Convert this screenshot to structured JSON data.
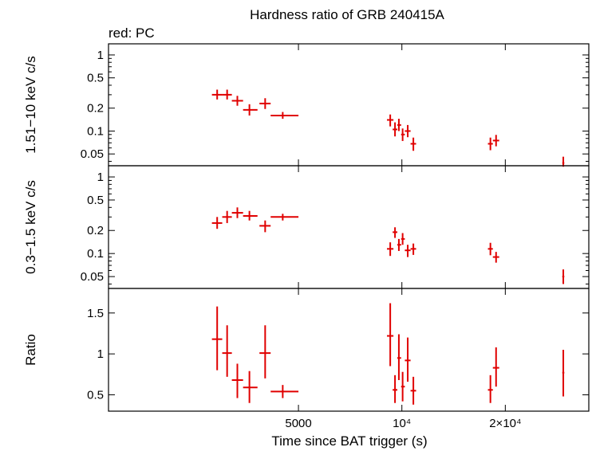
{
  "chart_data": {
    "type": "scatter",
    "title": "Hardness ratio of GRB 240415A",
    "annotation": "red: PC",
    "xlabel": "Time since BAT trigger (s)",
    "x_scale": "log",
    "xlim": [
      1400,
      35000
    ],
    "x_ticks": [
      {
        "value": 5000,
        "label": "5000"
      },
      {
        "value": 10000,
        "label": "10⁴"
      },
      {
        "value": 20000,
        "label": "2×10⁴"
      }
    ],
    "series_color": "#e00000",
    "panels": [
      {
        "id": "hard",
        "ylabel": "1.51−10 keV c/s",
        "y_scale": "log",
        "ylim": [
          0.035,
          1.4
        ],
        "y_ticks": [
          {
            "value": 1,
            "label": "1"
          },
          {
            "value": 0.5,
            "label": "0.5"
          },
          {
            "value": 0.2,
            "label": "0.2"
          },
          {
            "value": 0.1,
            "label": "0.1"
          },
          {
            "value": 0.05,
            "label": "0.05"
          }
        ],
        "points": [
          {
            "x": 2900,
            "xlo": 2800,
            "xhi": 3000,
            "y": 0.3,
            "ylo": 0.26,
            "yhi": 0.35
          },
          {
            "x": 3100,
            "xlo": 3000,
            "xhi": 3200,
            "y": 0.3,
            "ylo": 0.26,
            "yhi": 0.35
          },
          {
            "x": 3320,
            "xlo": 3200,
            "xhi": 3450,
            "y": 0.25,
            "ylo": 0.215,
            "yhi": 0.29
          },
          {
            "x": 3600,
            "xlo": 3450,
            "xhi": 3800,
            "y": 0.19,
            "ylo": 0.16,
            "yhi": 0.225
          },
          {
            "x": 4000,
            "xlo": 3850,
            "xhi": 4150,
            "y": 0.23,
            "ylo": 0.195,
            "yhi": 0.27
          },
          {
            "x": 4500,
            "xlo": 4150,
            "xhi": 5000,
            "y": 0.16,
            "ylo": 0.145,
            "yhi": 0.178
          },
          {
            "x": 9250,
            "xlo": 9050,
            "xhi": 9450,
            "y": 0.14,
            "ylo": 0.115,
            "yhi": 0.165
          },
          {
            "x": 9550,
            "xlo": 9400,
            "xhi": 9700,
            "y": 0.105,
            "ylo": 0.085,
            "yhi": 0.13
          },
          {
            "x": 9800,
            "xlo": 9700,
            "xhi": 9950,
            "y": 0.12,
            "ylo": 0.1,
            "yhi": 0.145
          },
          {
            "x": 10050,
            "xlo": 9950,
            "xhi": 10200,
            "y": 0.09,
            "ylo": 0.074,
            "yhi": 0.108
          },
          {
            "x": 10400,
            "xlo": 10200,
            "xhi": 10600,
            "y": 0.1,
            "ylo": 0.083,
            "yhi": 0.12
          },
          {
            "x": 10800,
            "xlo": 10600,
            "xhi": 11000,
            "y": 0.068,
            "ylo": 0.055,
            "yhi": 0.082
          },
          {
            "x": 18100,
            "xlo": 17800,
            "xhi": 18400,
            "y": 0.068,
            "ylo": 0.056,
            "yhi": 0.082
          },
          {
            "x": 18800,
            "xlo": 18400,
            "xhi": 19200,
            "y": 0.075,
            "ylo": 0.063,
            "yhi": 0.089
          },
          {
            "x": 29500,
            "xlo": 29300,
            "xhi": 29700,
            "y": 0.038,
            "ylo": 0.034,
            "yhi": 0.046
          }
        ]
      },
      {
        "id": "soft",
        "ylabel": "0.3−1.5 keV c/s",
        "y_scale": "log",
        "ylim": [
          0.035,
          1.4
        ],
        "y_ticks": [
          {
            "value": 1,
            "label": "1"
          },
          {
            "value": 0.5,
            "label": "0.5"
          },
          {
            "value": 0.2,
            "label": "0.2"
          },
          {
            "value": 0.1,
            "label": "0.1"
          },
          {
            "value": 0.05,
            "label": "0.05"
          }
        ],
        "points": [
          {
            "x": 2900,
            "xlo": 2800,
            "xhi": 3000,
            "y": 0.25,
            "ylo": 0.21,
            "yhi": 0.3
          },
          {
            "x": 3100,
            "xlo": 3000,
            "xhi": 3200,
            "y": 0.3,
            "ylo": 0.25,
            "yhi": 0.36
          },
          {
            "x": 3320,
            "xlo": 3200,
            "xhi": 3450,
            "y": 0.34,
            "ylo": 0.29,
            "yhi": 0.4
          },
          {
            "x": 3600,
            "xlo": 3450,
            "xhi": 3800,
            "y": 0.31,
            "ylo": 0.27,
            "yhi": 0.36
          },
          {
            "x": 4000,
            "xlo": 3850,
            "xhi": 4150,
            "y": 0.23,
            "ylo": 0.19,
            "yhi": 0.27
          },
          {
            "x": 4500,
            "xlo": 4150,
            "xhi": 5000,
            "y": 0.3,
            "ylo": 0.27,
            "yhi": 0.33
          },
          {
            "x": 9250,
            "xlo": 9050,
            "xhi": 9450,
            "y": 0.115,
            "ylo": 0.093,
            "yhi": 0.14
          },
          {
            "x": 9550,
            "xlo": 9400,
            "xhi": 9700,
            "y": 0.19,
            "ylo": 0.16,
            "yhi": 0.22
          },
          {
            "x": 9800,
            "xlo": 9700,
            "xhi": 9950,
            "y": 0.13,
            "ylo": 0.108,
            "yhi": 0.155
          },
          {
            "x": 10050,
            "xlo": 9950,
            "xhi": 10200,
            "y": 0.155,
            "ylo": 0.13,
            "yhi": 0.185
          },
          {
            "x": 10400,
            "xlo": 10200,
            "xhi": 10600,
            "y": 0.11,
            "ylo": 0.09,
            "yhi": 0.13
          },
          {
            "x": 10800,
            "xlo": 10600,
            "xhi": 11000,
            "y": 0.115,
            "ylo": 0.096,
            "yhi": 0.135
          },
          {
            "x": 18100,
            "xlo": 17800,
            "xhi": 18400,
            "y": 0.115,
            "ylo": 0.095,
            "yhi": 0.138
          },
          {
            "x": 18800,
            "xlo": 18400,
            "xhi": 19200,
            "y": 0.09,
            "ylo": 0.076,
            "yhi": 0.105
          },
          {
            "x": 29500,
            "xlo": 29300,
            "xhi": 29700,
            "y": 0.05,
            "ylo": 0.04,
            "yhi": 0.062
          }
        ]
      },
      {
        "id": "ratio",
        "ylabel": "Ratio",
        "y_scale": "linear",
        "ylim": [
          0.3,
          1.8
        ],
        "y_ticks": [
          {
            "value": 1.5,
            "label": "1.5"
          },
          {
            "value": 1,
            "label": "1"
          },
          {
            "value": 0.5,
            "label": "0.5"
          }
        ],
        "points": [
          {
            "x": 2900,
            "xlo": 2800,
            "xhi": 3000,
            "y": 1.18,
            "ylo": 0.8,
            "yhi": 1.58
          },
          {
            "x": 3100,
            "xlo": 3000,
            "xhi": 3200,
            "y": 1.01,
            "ylo": 0.72,
            "yhi": 1.35
          },
          {
            "x": 3320,
            "xlo": 3200,
            "xhi": 3450,
            "y": 0.68,
            "ylo": 0.46,
            "yhi": 0.88
          },
          {
            "x": 3600,
            "xlo": 3450,
            "xhi": 3800,
            "y": 0.59,
            "ylo": 0.4,
            "yhi": 0.79
          },
          {
            "x": 4000,
            "xlo": 3850,
            "xhi": 4150,
            "y": 1.01,
            "ylo": 0.7,
            "yhi": 1.35
          },
          {
            "x": 4500,
            "xlo": 4150,
            "xhi": 5000,
            "y": 0.54,
            "ylo": 0.46,
            "yhi": 0.62
          },
          {
            "x": 9250,
            "xlo": 9050,
            "xhi": 9450,
            "y": 1.22,
            "ylo": 0.85,
            "yhi": 1.62
          },
          {
            "x": 9550,
            "xlo": 9400,
            "xhi": 9700,
            "y": 0.56,
            "ylo": 0.4,
            "yhi": 0.74
          },
          {
            "x": 9800,
            "xlo": 9700,
            "xhi": 9950,
            "y": 0.95,
            "ylo": 0.68,
            "yhi": 1.24
          },
          {
            "x": 10050,
            "xlo": 9950,
            "xhi": 10200,
            "y": 0.6,
            "ylo": 0.42,
            "yhi": 0.78
          },
          {
            "x": 10400,
            "xlo": 10200,
            "xhi": 10600,
            "y": 0.92,
            "ylo": 0.66,
            "yhi": 1.2
          },
          {
            "x": 10800,
            "xlo": 10600,
            "xhi": 11000,
            "y": 0.55,
            "ylo": 0.38,
            "yhi": 0.72
          },
          {
            "x": 18100,
            "xlo": 17800,
            "xhi": 18400,
            "y": 0.56,
            "ylo": 0.4,
            "yhi": 0.74
          },
          {
            "x": 18800,
            "xlo": 18400,
            "xhi": 19200,
            "y": 0.83,
            "ylo": 0.6,
            "yhi": 1.08
          },
          {
            "x": 29500,
            "xlo": 29300,
            "xhi": 29700,
            "y": 0.77,
            "ylo": 0.48,
            "yhi": 1.05
          }
        ]
      }
    ]
  }
}
